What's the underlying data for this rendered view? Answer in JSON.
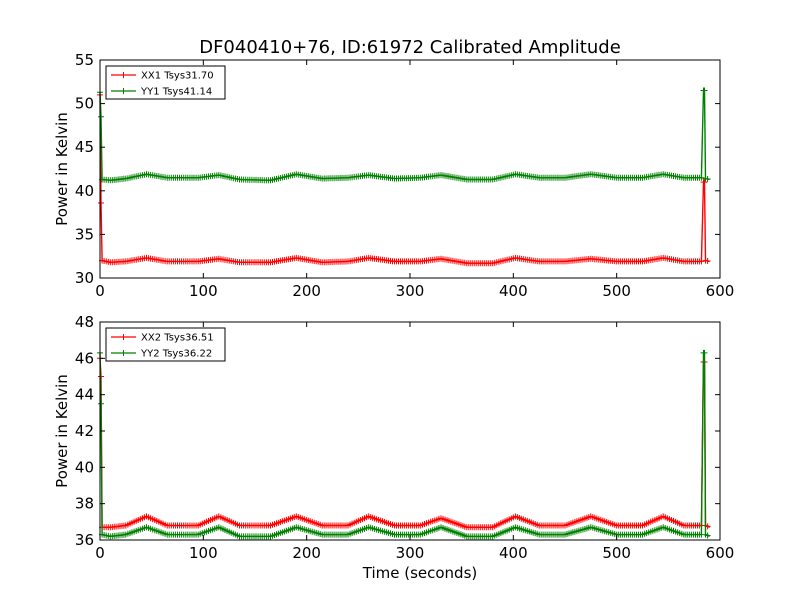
{
  "title": "DF040410+76, ID:61972 Calibrated Amplitude",
  "colors": {
    "xx": "#ff0000",
    "yy": "#008000",
    "axes": "#000000",
    "background": "#ffffff"
  },
  "chart_data": [
    {
      "type": "line",
      "title": "DF040410+76, ID:61972 Calibrated Amplitude",
      "xlabel": "",
      "ylabel": "Power in Kelvin",
      "xlim": [
        0,
        600
      ],
      "ylim": [
        30,
        55
      ],
      "xticks": [
        0,
        100,
        200,
        300,
        400,
        500,
        600
      ],
      "yticks": [
        30,
        35,
        40,
        45,
        50,
        55
      ],
      "legend": "top-left",
      "grid": false,
      "marker": "+",
      "series": [
        {
          "name": "XX1 Tsys31.70",
          "color": "#ff0000",
          "points": [
            [
              0,
              51
            ],
            [
              1,
              38.6
            ],
            [
              2,
              32
            ],
            [
              10,
              31.8
            ],
            [
              25,
              31.9
            ],
            [
              45,
              32.3
            ],
            [
              65,
              31.9
            ],
            [
              95,
              31.9
            ],
            [
              115,
              32.2
            ],
            [
              135,
              31.8
            ],
            [
              165,
              31.8
            ],
            [
              190,
              32.3
            ],
            [
              215,
              31.8
            ],
            [
              240,
              31.9
            ],
            [
              260,
              32.3
            ],
            [
              285,
              31.9
            ],
            [
              310,
              31.9
            ],
            [
              330,
              32.2
            ],
            [
              355,
              31.7
            ],
            [
              380,
              31.7
            ],
            [
              402,
              32.3
            ],
            [
              425,
              31.9
            ],
            [
              450,
              31.9
            ],
            [
              475,
              32.2
            ],
            [
              500,
              31.9
            ],
            [
              525,
              31.9
            ],
            [
              545,
              32.3
            ],
            [
              565,
              31.9
            ],
            [
              582,
              31.9
            ],
            [
              584,
              41
            ],
            [
              585,
              41
            ],
            [
              586,
              32
            ],
            [
              590,
              31.9
            ]
          ]
        },
        {
          "name": "YY1 Tsys41.14",
          "color": "#008000",
          "points": [
            [
              0,
              51.3
            ],
            [
              1,
              48.5
            ],
            [
              2,
              41.3
            ],
            [
              10,
              41.2
            ],
            [
              25,
              41.4
            ],
            [
              45,
              41.9
            ],
            [
              65,
              41.5
            ],
            [
              95,
              41.5
            ],
            [
              115,
              41.8
            ],
            [
              135,
              41.3
            ],
            [
              165,
              41.2
            ],
            [
              190,
              41.9
            ],
            [
              215,
              41.4
            ],
            [
              240,
              41.5
            ],
            [
              260,
              41.8
            ],
            [
              285,
              41.4
            ],
            [
              310,
              41.5
            ],
            [
              330,
              41.8
            ],
            [
              355,
              41.3
            ],
            [
              380,
              41.3
            ],
            [
              402,
              41.9
            ],
            [
              425,
              41.5
            ],
            [
              450,
              41.5
            ],
            [
              475,
              41.9
            ],
            [
              500,
              41.5
            ],
            [
              525,
              41.5
            ],
            [
              545,
              41.9
            ],
            [
              565,
              41.5
            ],
            [
              582,
              41.5
            ],
            [
              584,
              51.5
            ],
            [
              585,
              51.5
            ],
            [
              586,
              41.4
            ],
            [
              590,
              41.3
            ]
          ]
        }
      ]
    },
    {
      "type": "line",
      "title": "",
      "xlabel": "Time (seconds)",
      "ylabel": "Power in Kelvin",
      "xlim": [
        0,
        600
      ],
      "ylim": [
        36,
        48
      ],
      "xticks": [
        0,
        100,
        200,
        300,
        400,
        500,
        600
      ],
      "yticks": [
        36,
        38,
        40,
        42,
        44,
        46,
        48
      ],
      "legend": "top-left",
      "grid": false,
      "marker": "+",
      "series": [
        {
          "name": "XX2 Tsys36.51",
          "color": "#ff0000",
          "points": [
            [
              0,
              46
            ],
            [
              1,
              45
            ],
            [
              2,
              36.7
            ],
            [
              10,
              36.7
            ],
            [
              25,
              36.8
            ],
            [
              45,
              37.3
            ],
            [
              65,
              36.8
            ],
            [
              95,
              36.8
            ],
            [
              115,
              37.3
            ],
            [
              135,
              36.8
            ],
            [
              165,
              36.8
            ],
            [
              190,
              37.3
            ],
            [
              215,
              36.8
            ],
            [
              240,
              36.8
            ],
            [
              260,
              37.3
            ],
            [
              285,
              36.8
            ],
            [
              310,
              36.8
            ],
            [
              330,
              37.2
            ],
            [
              355,
              36.7
            ],
            [
              380,
              36.7
            ],
            [
              402,
              37.3
            ],
            [
              425,
              36.8
            ],
            [
              450,
              36.8
            ],
            [
              475,
              37.3
            ],
            [
              500,
              36.8
            ],
            [
              525,
              36.8
            ],
            [
              545,
              37.3
            ],
            [
              565,
              36.8
            ],
            [
              582,
              36.8
            ],
            [
              584,
              45.8
            ],
            [
              585,
              45.8
            ],
            [
              586,
              36.8
            ],
            [
              590,
              36.7
            ]
          ]
        },
        {
          "name": "YY2 Tsys36.22",
          "color": "#008000",
          "points": [
            [
              0,
              46.3
            ],
            [
              1,
              43.5
            ],
            [
              2,
              36.3
            ],
            [
              10,
              36.2
            ],
            [
              25,
              36.3
            ],
            [
              45,
              36.7
            ],
            [
              65,
              36.3
            ],
            [
              95,
              36.3
            ],
            [
              115,
              36.7
            ],
            [
              135,
              36.2
            ],
            [
              165,
              36.2
            ],
            [
              190,
              36.7
            ],
            [
              215,
              36.3
            ],
            [
              240,
              36.3
            ],
            [
              260,
              36.7
            ],
            [
              285,
              36.3
            ],
            [
              310,
              36.3
            ],
            [
              330,
              36.7
            ],
            [
              355,
              36.2
            ],
            [
              380,
              36.2
            ],
            [
              402,
              36.7
            ],
            [
              425,
              36.3
            ],
            [
              450,
              36.3
            ],
            [
              475,
              36.7
            ],
            [
              500,
              36.3
            ],
            [
              525,
              36.3
            ],
            [
              545,
              36.7
            ],
            [
              565,
              36.3
            ],
            [
              582,
              36.3
            ],
            [
              584,
              46.3
            ],
            [
              585,
              46.3
            ],
            [
              586,
              36.3
            ],
            [
              590,
              36.2
            ]
          ]
        }
      ]
    }
  ]
}
